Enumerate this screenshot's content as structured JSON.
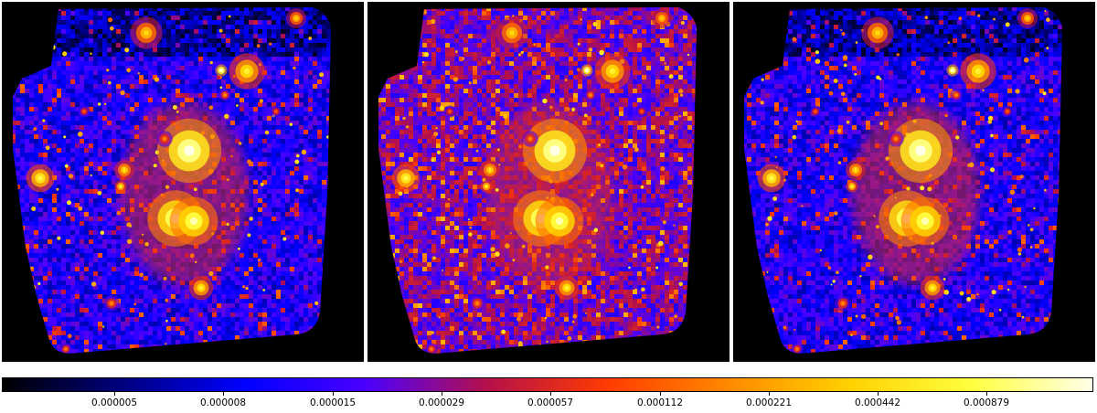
{
  "colormap": {
    "name": "gnuplot2",
    "stops": [
      "#000000",
      "#000080",
      "#0000ff",
      "#4b00ff",
      "#b4104b",
      "#ff3c00",
      "#ff8a00",
      "#ffd200",
      "#ffff40",
      "#ffffe8"
    ]
  },
  "colorbar": {
    "scale": "log",
    "tick_labels": [
      "0.000005",
      "0.000008",
      "0.000015",
      "0.000029",
      "0.000057",
      "0.000112",
      "0.000221",
      "0.000442",
      "0.000879"
    ]
  },
  "panels": [
    {
      "name": "panel-left",
      "background_level": "low"
    },
    {
      "name": "panel-middle",
      "background_level": "high"
    },
    {
      "name": "panel-right",
      "background_level": "low"
    }
  ]
}
